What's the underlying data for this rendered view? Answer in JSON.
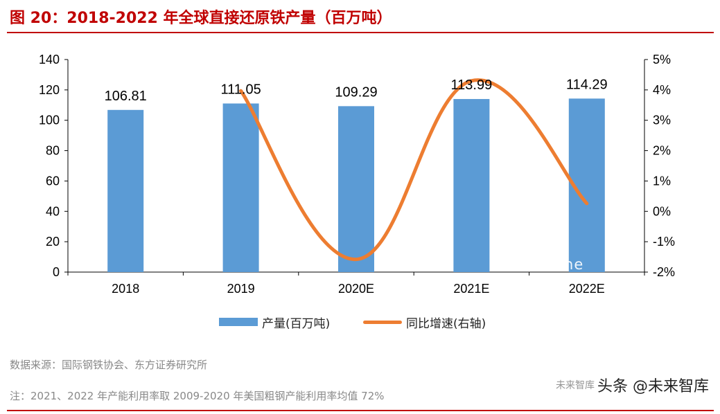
{
  "title": "图 20：2018-2022 年全球直接还原铁产量（百万吨）",
  "chart_data": {
    "type": "bar",
    "categories": [
      "2018",
      "2019",
      "2020E",
      "2021E",
      "2022E"
    ],
    "series": [
      {
        "name": "产量(百万吨)",
        "type": "bar",
        "axis": "left",
        "color": "#5b9bd5",
        "values": [
          106.81,
          111.05,
          109.29,
          113.99,
          114.29
        ]
      },
      {
        "name": "同比增速(右轴)",
        "type": "line",
        "axis": "right",
        "color": "#ed7d31",
        "values": [
          null,
          3.97,
          -1.58,
          4.3,
          0.26
        ]
      }
    ],
    "data_labels": [
      "106.81",
      "111.05",
      "109.29",
      "113.99",
      "114.29"
    ],
    "y_left": {
      "min": 0,
      "max": 140,
      "ticks": [
        "0",
        "20",
        "40",
        "60",
        "80",
        "100",
        "120",
        "140"
      ]
    },
    "y_right": {
      "min": -2,
      "max": 5,
      "ticks": [
        "-2%",
        "-1%",
        "0%",
        "1%",
        "2%",
        "3%",
        "4%",
        "5%"
      ]
    },
    "legend_position": "bottom",
    "grid": false
  },
  "footer": {
    "source": "数据来源：国际钢铁协会、东方证券研究所",
    "note": "注：2021、2022 年产能利用率取 2009-2020 年美国粗钢产能利用率均值 72%"
  },
  "watermark": {
    "url_text": "...om.ne",
    "badge_faint": "未来智库",
    "badge_text": "头条 @未来智库"
  }
}
